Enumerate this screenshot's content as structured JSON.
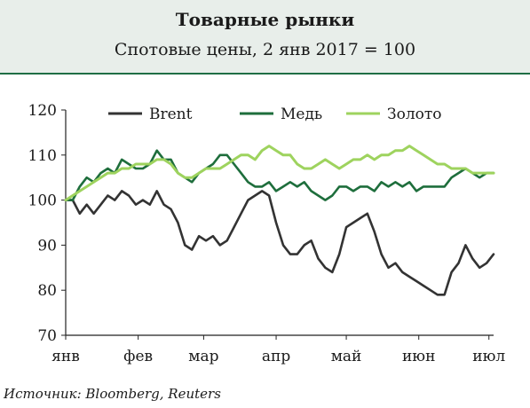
{
  "header": {
    "title": "Товарные рынки",
    "subtitle": "Спотовые цены, 2 янв 2017 = 100"
  },
  "source": "Источник: Bloomberg, Reuters",
  "colors": {
    "brent": "#333333",
    "copper": "#1e6e3c",
    "gold": "#9ed35e"
  },
  "chart_data": {
    "type": "line",
    "title": "Товарные рынки",
    "subtitle": "Спотовые цены, 2 янв 2017 = 100",
    "xlabel": "",
    "ylabel": "",
    "x": [
      0,
      3,
      6,
      9,
      12,
      15,
      18,
      21,
      24,
      27,
      30,
      33,
      36,
      39,
      42,
      45,
      48,
      51,
      54,
      57,
      60,
      63,
      66,
      69,
      72,
      75,
      78,
      81,
      84,
      87,
      90,
      93,
      96,
      99,
      102,
      105,
      108,
      111,
      114,
      117,
      120,
      123,
      126,
      129,
      132,
      135,
      138,
      141,
      144,
      147,
      150,
      153,
      156,
      159,
      162,
      165,
      168,
      171,
      174,
      177,
      180,
      183
    ],
    "x_ticks": {
      "positions": [
        0,
        31,
        59,
        90,
        120,
        151,
        181
      ],
      "labels": [
        "янв",
        "фев",
        "мар",
        "апр",
        "май",
        "июн",
        "июл"
      ]
    },
    "ylim": [
      70,
      120
    ],
    "y_ticks": [
      70,
      80,
      90,
      100,
      110,
      120
    ],
    "legend_position": "top",
    "series": [
      {
        "name": "Brent",
        "color": "#333333",
        "values": [
          100,
          100,
          97,
          99,
          97,
          99,
          101,
          100,
          102,
          101,
          99,
          100,
          99,
          102,
          99,
          98,
          95,
          90,
          89,
          92,
          91,
          92,
          90,
          91,
          94,
          97,
          100,
          101,
          102,
          101,
          95,
          90,
          88,
          88,
          90,
          91,
          87,
          85,
          84,
          88,
          94,
          95,
          96,
          97,
          93,
          88,
          85,
          86,
          84,
          83,
          82,
          81,
          80,
          79,
          79,
          84,
          86,
          90,
          87,
          85,
          86,
          88
        ]
      },
      {
        "name": "Медь",
        "color": "#1e6e3c",
        "values": [
          100,
          100,
          103,
          105,
          104,
          106,
          107,
          106,
          109,
          108,
          107,
          107,
          108,
          111,
          109,
          109,
          106,
          105,
          104,
          106,
          107,
          108,
          110,
          110,
          108,
          106,
          104,
          103,
          103,
          104,
          102,
          103,
          104,
          103,
          104,
          102,
          101,
          100,
          101,
          103,
          103,
          102,
          103,
          103,
          102,
          104,
          103,
          104,
          103,
          104,
          102,
          103,
          103,
          103,
          103,
          105,
          106,
          107,
          106,
          105,
          106,
          106
        ]
      },
      {
        "name": "Золото",
        "color": "#9ed35e",
        "values": [
          100,
          101,
          102,
          103,
          104,
          105,
          106,
          106,
          107,
          107,
          108,
          108,
          108,
          109,
          109,
          108,
          106,
          105,
          105,
          106,
          107,
          107,
          107,
          108,
          109,
          110,
          110,
          109,
          111,
          112,
          111,
          110,
          110,
          108,
          107,
          107,
          108,
          109,
          108,
          107,
          108,
          109,
          109,
          110,
          109,
          110,
          110,
          111,
          111,
          112,
          111,
          110,
          109,
          108,
          108,
          107,
          107,
          107,
          106,
          106,
          106,
          106
        ]
      }
    ]
  }
}
